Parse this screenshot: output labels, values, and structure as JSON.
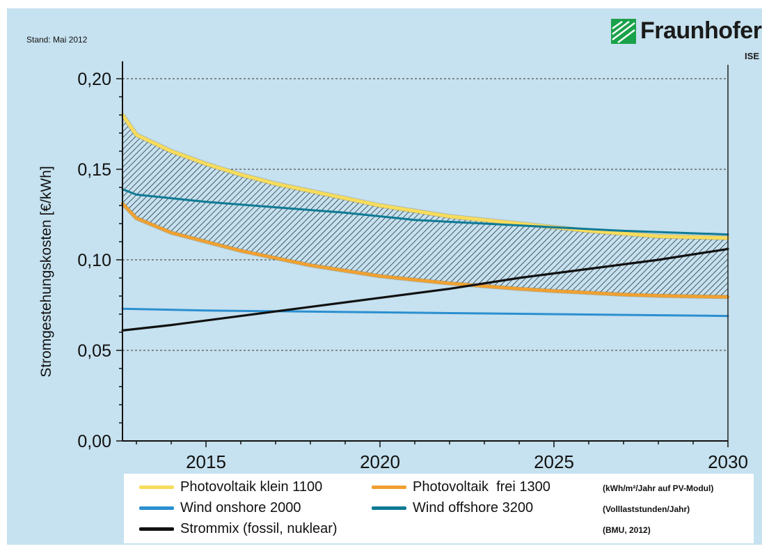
{
  "header": {
    "stand": "Stand: Mai 2012",
    "logo_name": "Fraunhofer",
    "logo_sub": "ISE"
  },
  "colors": {
    "background": "#c6e1ef",
    "pv_klein": "#f7dc5c",
    "pv_frei": "#f0a030",
    "wind_onshore": "#2b8fd0",
    "wind_offshore": "#0f7a95",
    "strommix": "#111111",
    "logo_green": "#1aa24a"
  },
  "chart_data": {
    "type": "line",
    "title": "",
    "xlabel": "",
    "ylabel": "Stromgestehungskosten [€/kWh]",
    "xlim": [
      2012.6,
      2030
    ],
    "ylim": [
      0,
      0.2
    ],
    "x_ticks": [
      2015,
      2020,
      2025,
      2030
    ],
    "x_tick_labels": [
      "2015",
      "2020",
      "2025",
      "2030"
    ],
    "y_ticks": [
      0,
      0.05,
      0.1,
      0.15,
      0.2
    ],
    "y_tick_labels": [
      "0,00",
      "0,05",
      "0,10",
      "0,15",
      "0,20"
    ],
    "grid": "horizontal dashed",
    "hatched_band_between": [
      "Photovoltaik klein 1100",
      "Photovoltaik  frei 1300"
    ],
    "series": [
      {
        "name": "Photovoltaik klein 1100",
        "color": "#f7dc5c",
        "x": [
          2012.6,
          2013,
          2014,
          2015,
          2016,
          2017,
          2018,
          2019,
          2020,
          2021,
          2022,
          2023,
          2024,
          2025,
          2026,
          2027,
          2028,
          2029,
          2030
        ],
        "y": [
          0.18,
          0.169,
          0.16,
          0.153,
          0.147,
          0.142,
          0.138,
          0.134,
          0.13,
          0.127,
          0.124,
          0.122,
          0.12,
          0.118,
          0.116,
          0.1145,
          0.113,
          0.1125,
          0.112
        ]
      },
      {
        "name": "Photovoltaik  frei 1300",
        "color": "#f0a030",
        "x": [
          2012.6,
          2013,
          2014,
          2015,
          2016,
          2017,
          2018,
          2019,
          2020,
          2021,
          2022,
          2023,
          2024,
          2025,
          2026,
          2027,
          2028,
          2029,
          2030
        ],
        "y": [
          0.131,
          0.123,
          0.115,
          0.11,
          0.105,
          0.101,
          0.097,
          0.094,
          0.091,
          0.089,
          0.087,
          0.0855,
          0.084,
          0.0828,
          0.0818,
          0.0808,
          0.0802,
          0.0798,
          0.0795
        ]
      },
      {
        "name": "Wind onshore 2000",
        "color": "#2b8fd0",
        "x": [
          2012.6,
          2015,
          2020,
          2025,
          2030
        ],
        "y": [
          0.073,
          0.072,
          0.071,
          0.07,
          0.069
        ]
      },
      {
        "name": "Wind offshore 3200",
        "color": "#0f7a95",
        "x": [
          2012.6,
          2013,
          2015,
          2017,
          2019,
          2021,
          2023,
          2025,
          2027,
          2030
        ],
        "y": [
          0.139,
          0.136,
          0.132,
          0.129,
          0.126,
          0.122,
          0.12,
          0.118,
          0.116,
          0.114
        ]
      },
      {
        "name": "Strommix (fossil, nuklear)",
        "color": "#111111",
        "x": [
          2012.6,
          2014,
          2016,
          2018,
          2020,
          2022,
          2024,
          2026,
          2028,
          2030
        ],
        "y": [
          0.061,
          0.064,
          0.069,
          0.074,
          0.079,
          0.084,
          0.09,
          0.095,
          0.1,
          0.106
        ]
      }
    ]
  },
  "legend": {
    "items": [
      {
        "label": "Photovoltaik klein 1100",
        "color": "#f7dc5c"
      },
      {
        "label": "Photovoltaik  frei 1300",
        "color": "#f0a030"
      },
      {
        "label": "Wind onshore 2000",
        "color": "#2b8fd0"
      },
      {
        "label": "Wind offshore 3200",
        "color": "#0f7a95"
      },
      {
        "label": "Strommix (fossil, nuklear)",
        "color": "#111111"
      }
    ],
    "notes": [
      "(kWh/m²/Jahr auf PV-Modul)",
      "(Volllaststunden/Jahr)",
      "(BMU, 2012)"
    ]
  }
}
